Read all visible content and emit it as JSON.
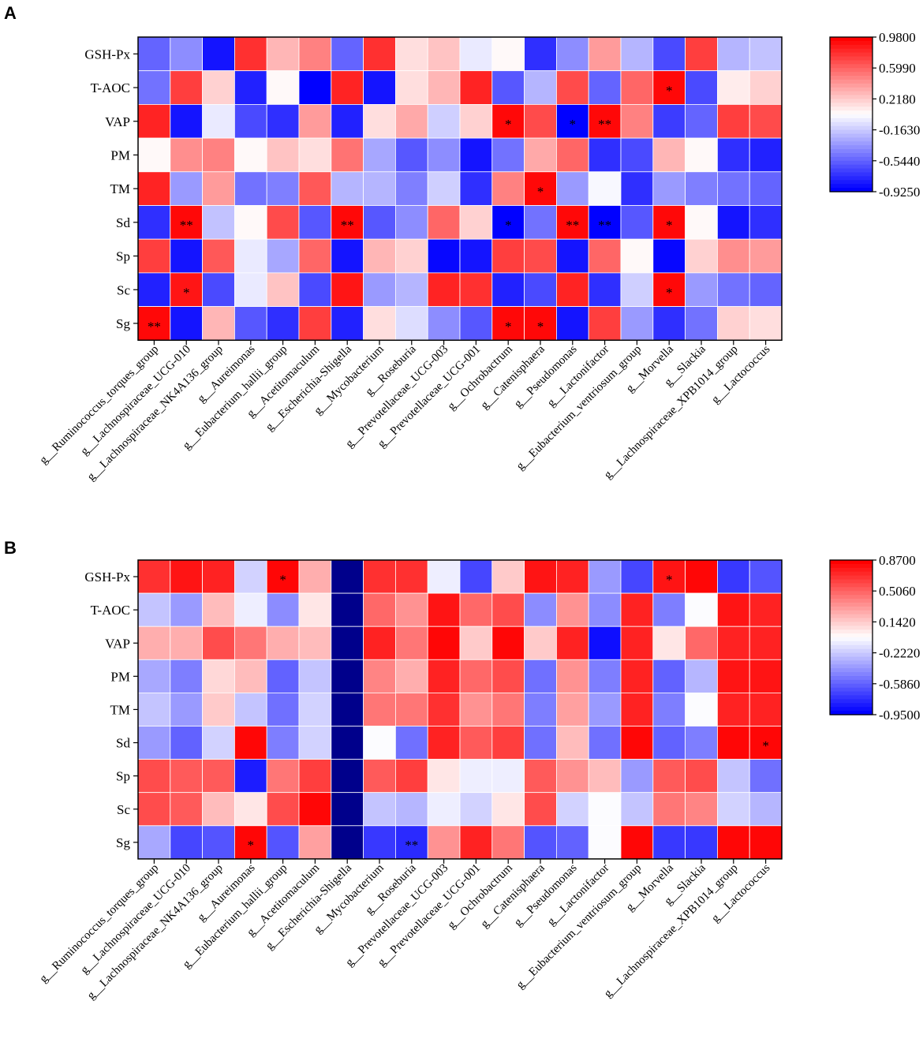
{
  "chart_data": [
    {
      "type": "heatmap",
      "panel": "A",
      "rows": [
        "GSH-Px",
        "T-AOC",
        "VAP",
        "PM",
        "TM",
        "Sd",
        "Sp",
        "Sc",
        "Sg"
      ],
      "columns": [
        "g__Ruminococcus_torques_group",
        "g__Lachnospiraceae_UCG-010",
        "g__Lachnospiraceae_NK4A136_group",
        "g__Aureimonas",
        "g__Eubacterium_hallii_group",
        "g__Acetitomaculum",
        "g__Escherichia-Shigella",
        "g__Mycobacterium",
        "g__Roseburia",
        "g__Prevotellaceae_UCG-003",
        "g__Prevotellaceae_UCG-001",
        "g__Ochrobactrum",
        "g__Catenisphaera",
        "g__Pseudomonas",
        "g__Lactonifactor",
        "g__Eubacterium_ventriosum_group",
        "g__Morvella",
        "g__Slackia",
        "g__Lachnospiraceae_XPB1014_group",
        "g__Lactococcus"
      ],
      "values": [
        [
          -0.55,
          -0.4,
          -0.85,
          0.8,
          0.3,
          0.5,
          -0.55,
          0.8,
          0.15,
          0.25,
          -0.05,
          0.05,
          -0.75,
          -0.4,
          0.4,
          -0.25,
          -0.65,
          0.75,
          -0.25,
          -0.2
        ],
        [
          -0.5,
          0.75,
          0.2,
          -0.8,
          0.05,
          -0.92,
          0.85,
          -0.85,
          0.15,
          0.3,
          0.85,
          -0.6,
          -0.25,
          0.7,
          -0.55,
          0.6,
          0.95,
          -0.65,
          0.1,
          0.2
        ],
        [
          0.85,
          -0.85,
          -0.05,
          -0.65,
          -0.75,
          0.4,
          -0.8,
          0.15,
          0.35,
          -0.15,
          0.2,
          0.95,
          0.7,
          -0.92,
          0.95,
          0.5,
          -0.7,
          -0.55,
          0.75,
          0.7
        ],
        [
          0.05,
          0.45,
          0.5,
          0.05,
          0.25,
          0.15,
          0.55,
          -0.3,
          -0.6,
          -0.4,
          -0.85,
          -0.5,
          0.35,
          0.6,
          -0.75,
          -0.65,
          0.3,
          0.05,
          -0.75,
          -0.8
        ],
        [
          0.85,
          -0.35,
          0.4,
          -0.5,
          -0.45,
          0.65,
          -0.25,
          -0.25,
          -0.45,
          -0.15,
          -0.75,
          0.5,
          0.95,
          -0.35,
          0.0,
          -0.75,
          -0.35,
          -0.45,
          -0.5,
          -0.55
        ],
        [
          -0.75,
          0.95,
          -0.2,
          0.05,
          0.7,
          -0.6,
          0.95,
          -0.6,
          -0.4,
          0.6,
          0.2,
          -0.92,
          -0.5,
          0.95,
          -0.92,
          -0.6,
          0.95,
          0.05,
          -0.85,
          -0.75
        ],
        [
          0.75,
          -0.85,
          0.65,
          -0.05,
          -0.3,
          0.6,
          -0.85,
          0.3,
          0.2,
          -0.9,
          -0.85,
          0.75,
          0.7,
          -0.85,
          0.6,
          0.05,
          -0.9,
          0.2,
          0.45,
          0.4
        ],
        [
          -0.8,
          0.9,
          -0.65,
          -0.05,
          0.25,
          -0.65,
          0.9,
          -0.35,
          -0.25,
          0.85,
          0.8,
          -0.8,
          -0.65,
          0.85,
          -0.75,
          -0.15,
          0.95,
          -0.35,
          -0.5,
          -0.55
        ],
        [
          0.95,
          -0.85,
          0.3,
          -0.6,
          -0.75,
          0.75,
          -0.8,
          0.15,
          -0.1,
          -0.4,
          -0.6,
          0.95,
          0.95,
          -0.85,
          0.75,
          -0.35,
          -0.75,
          -0.5,
          0.2,
          0.15
        ]
      ],
      "significance": [
        [
          "",
          "",
          "",
          "",
          "",
          "",
          "",
          "",
          "",
          "",
          "",
          "",
          "",
          "",
          "",
          "",
          "",
          "",
          "",
          ""
        ],
        [
          "",
          "",
          "",
          "",
          "",
          "",
          "",
          "",
          "",
          "",
          "",
          "",
          "",
          "",
          "",
          "",
          "*",
          "",
          "",
          ""
        ],
        [
          "",
          "",
          "",
          "",
          "",
          "",
          "",
          "",
          "",
          "",
          "",
          "*",
          "",
          "*",
          "**",
          "",
          "",
          "",
          "",
          ""
        ],
        [
          "",
          "",
          "",
          "",
          "",
          "",
          "",
          "",
          "",
          "",
          "",
          "",
          "",
          "",
          "",
          "",
          "",
          "",
          "",
          ""
        ],
        [
          "",
          "",
          "",
          "",
          "",
          "",
          "",
          "",
          "",
          "",
          "",
          "",
          "*",
          "",
          "",
          "",
          "",
          "",
          "",
          ""
        ],
        [
          "",
          "**",
          "",
          "",
          "",
          "",
          "**",
          "",
          "",
          "",
          "",
          "*",
          "",
          "**",
          "**",
          "",
          "*",
          "",
          "",
          ""
        ],
        [
          "",
          "",
          "",
          "",
          "",
          "",
          "",
          "",
          "",
          "",
          "",
          "",
          "",
          "",
          "",
          "",
          "",
          "",
          "",
          ""
        ],
        [
          "",
          "*",
          "",
          "",
          "",
          "",
          "",
          "",
          "",
          "",
          "",
          "",
          "",
          "",
          "",
          "",
          "*",
          "",
          "",
          ""
        ],
        [
          "**",
          "",
          "",
          "",
          "",
          "",
          "",
          "",
          "",
          "",
          "",
          "*",
          "*",
          "",
          "",
          "",
          "",
          "",
          "",
          ""
        ]
      ],
      "color_min": -0.925,
      "color_max": 0.98,
      "colorbar_ticks": [
        "0.9800",
        "0.5990",
        "0.2180",
        "-0.1630",
        "-0.5440",
        "-0.9250"
      ]
    },
    {
      "type": "heatmap",
      "panel": "B",
      "rows": [
        "GSH-Px",
        "T-AOC",
        "VAP",
        "PM",
        "TM",
        "Sd",
        "Sp",
        "Sc",
        "Sg"
      ],
      "columns": [
        "g__Ruminococcus_torques_group",
        "g__Lachnospiraceae_UCG-010",
        "g__Lachnospiraceae_NK4A136_group",
        "g__Aureimonas",
        "g__Eubacterium_hallii_group",
        "g__Acetitomaculum",
        "g__Escherichia-Shigella",
        "g__Mycobacterium",
        "g__Roseburia",
        "g__Prevotellaceae_UCG-003",
        "g__Prevotellaceae_UCG-001",
        "g__Ochrobactrum",
        "g__Catenisphaera",
        "g__Pseudomonas",
        "g__Lactonifactor",
        "g__Eubacterium_ventriosum_group",
        "g__Morvella",
        "g__Slackia",
        "g__Lachnospiraceae_XPB1014_group",
        "g__Lactococcus"
      ],
      "values": [
        [
          0.7,
          0.8,
          0.75,
          -0.2,
          0.85,
          0.25,
          null,
          0.7,
          0.7,
          -0.1,
          -0.7,
          0.15,
          0.8,
          0.75,
          -0.4,
          -0.7,
          0.8,
          0.85,
          -0.75,
          -0.65
        ],
        [
          -0.25,
          -0.4,
          0.2,
          -0.1,
          -0.45,
          0.05,
          null,
          0.5,
          0.35,
          0.8,
          0.5,
          0.6,
          -0.45,
          0.35,
          -0.45,
          0.75,
          -0.5,
          -0.05,
          0.8,
          0.75
        ],
        [
          0.25,
          0.25,
          0.6,
          0.45,
          0.25,
          0.2,
          null,
          0.75,
          0.45,
          0.85,
          0.15,
          0.85,
          0.15,
          0.75,
          -0.9,
          0.75,
          0.05,
          0.5,
          0.75,
          0.75
        ],
        [
          -0.35,
          -0.5,
          0.1,
          0.2,
          -0.6,
          -0.25,
          null,
          0.4,
          0.25,
          0.75,
          0.5,
          0.6,
          -0.55,
          0.35,
          -0.5,
          0.75,
          -0.6,
          -0.3,
          0.8,
          0.8
        ],
        [
          -0.25,
          -0.4,
          0.15,
          -0.25,
          -0.55,
          -0.2,
          null,
          0.45,
          0.45,
          0.7,
          0.35,
          0.45,
          -0.5,
          0.3,
          -0.4,
          0.75,
          -0.5,
          -0.05,
          0.75,
          0.75
        ],
        [
          -0.4,
          -0.6,
          -0.2,
          0.85,
          -0.5,
          -0.2,
          null,
          -0.05,
          -0.55,
          0.75,
          0.55,
          0.65,
          -0.55,
          0.2,
          -0.55,
          0.85,
          -0.6,
          -0.5,
          0.85,
          0.85
        ],
        [
          0.6,
          0.55,
          0.55,
          -0.85,
          0.45,
          0.65,
          null,
          0.55,
          0.65,
          0.05,
          -0.1,
          -0.1,
          0.55,
          0.35,
          0.2,
          -0.4,
          0.55,
          0.6,
          -0.25,
          -0.55
        ],
        [
          0.6,
          0.55,
          0.2,
          0.05,
          0.6,
          0.85,
          null,
          -0.25,
          -0.3,
          -0.1,
          -0.2,
          0.05,
          0.6,
          -0.2,
          -0.05,
          -0.25,
          0.45,
          0.4,
          -0.2,
          -0.3
        ],
        [
          -0.35,
          -0.7,
          -0.65,
          0.85,
          -0.65,
          0.3,
          null,
          -0.75,
          -0.8,
          0.35,
          0.75,
          0.45,
          -0.65,
          -0.6,
          -0.05,
          0.85,
          -0.75,
          -0.75,
          0.85,
          0.85
        ]
      ],
      "significance": [
        [
          "",
          "",
          "",
          "",
          "*",
          "",
          "",
          "",
          "",
          "",
          "",
          "",
          "",
          "",
          "",
          "",
          "*",
          "",
          "",
          ""
        ],
        [
          "",
          "",
          "",
          "",
          "",
          "",
          "",
          "",
          "",
          "",
          "",
          "",
          "",
          "",
          "",
          "",
          "",
          "",
          "",
          ""
        ],
        [
          "",
          "",
          "",
          "",
          "",
          "",
          "",
          "",
          "",
          "",
          "",
          "",
          "",
          "",
          "",
          "",
          "",
          "",
          "",
          ""
        ],
        [
          "",
          "",
          "",
          "",
          "",
          "",
          "",
          "",
          "",
          "",
          "",
          "",
          "",
          "",
          "",
          "",
          "",
          "",
          "",
          ""
        ],
        [
          "",
          "",
          "",
          "",
          "",
          "",
          "",
          "",
          "",
          "",
          "",
          "",
          "",
          "",
          "",
          "",
          "",
          "",
          "",
          ""
        ],
        [
          "",
          "",
          "",
          "",
          "",
          "",
          "",
          "",
          "",
          "",
          "",
          "",
          "",
          "",
          "",
          "",
          "",
          "",
          "",
          "*"
        ],
        [
          "",
          "",
          "",
          "",
          "",
          "",
          "",
          "",
          "",
          "",
          "",
          "",
          "",
          "",
          "",
          "",
          "",
          "",
          "",
          ""
        ],
        [
          "",
          "",
          "",
          "",
          "",
          "",
          "",
          "",
          "",
          "",
          "",
          "",
          "",
          "",
          "",
          "",
          "",
          "",
          "",
          ""
        ],
        [
          "",
          "",
          "",
          "*",
          "",
          "",
          "",
          "",
          "**",
          "",
          "",
          "",
          "",
          "",
          "",
          "",
          "",
          "",
          "",
          ""
        ]
      ],
      "color_min": -0.95,
      "color_max": 0.87,
      "colorbar_ticks": [
        "0.8700",
        "0.5060",
        "0.1420",
        "-0.2220",
        "-0.5860",
        "-0.9500"
      ],
      "missing_color": "#00008b"
    }
  ],
  "colors": {
    "positive": "#ff0000",
    "neutral": "#ffffff",
    "negative": "#0000ff",
    "frame": "#000000"
  }
}
